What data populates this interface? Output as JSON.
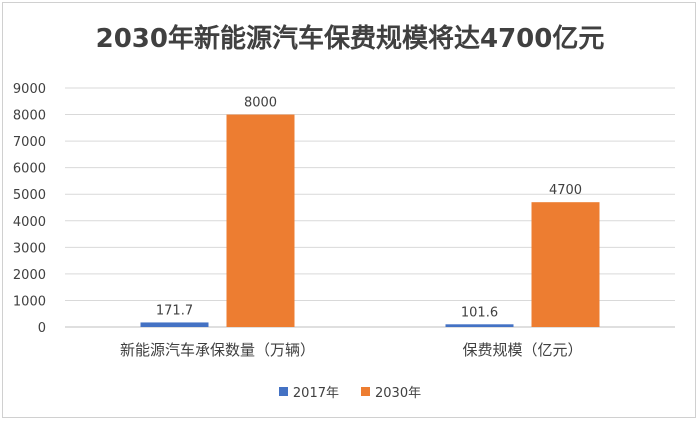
{
  "chart_data": {
    "type": "bar",
    "title": "2030年新能源汽车保费规模将达4700亿元",
    "categories": [
      "新能源汽车承保数量（万辆）",
      "保费规模（亿元）"
    ],
    "series": [
      {
        "name": "2017年",
        "values": [
          171.7,
          101.6
        ],
        "color": "#4472c4"
      },
      {
        "name": "2030年",
        "values": [
          8000,
          4700
        ],
        "color": "#ed7d31"
      }
    ],
    "data_labels": [
      [
        "171.7",
        "101.6"
      ],
      [
        "8000",
        "4700"
      ]
    ],
    "ylim": [
      0,
      9000
    ],
    "yticks": [
      "0",
      "1000",
      "2000",
      "3000",
      "4000",
      "5000",
      "6000",
      "7000",
      "8000",
      "9000"
    ],
    "grid": true,
    "legend_position": "bottom",
    "xlabel": "",
    "ylabel": ""
  }
}
